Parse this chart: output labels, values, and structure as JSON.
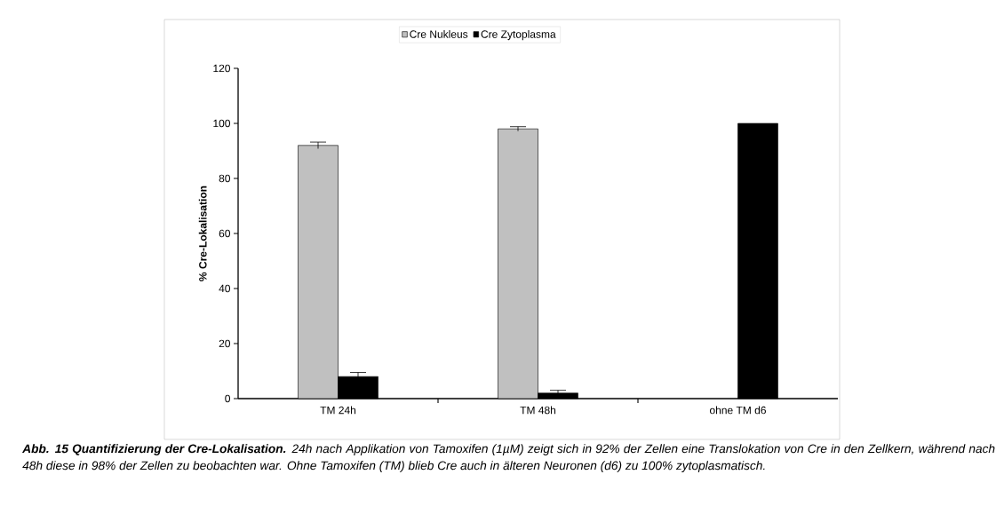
{
  "chart_data": {
    "type": "bar",
    "categories": [
      "TM 24h",
      "TM 48h",
      "ohne TM d6"
    ],
    "ylabel": "% Cre-Lokalisation",
    "series": [
      {
        "name": "Cre Nukleus",
        "color": "#c0c0c0",
        "values": [
          92,
          98,
          null
        ],
        "errors": [
          1.2,
          0.8,
          null
        ]
      },
      {
        "name": "Cre Zytoplasma",
        "color": "#000000",
        "values": [
          8,
          2,
          100
        ],
        "errors": [
          1.5,
          1.0,
          null
        ]
      }
    ],
    "ylim": [
      0,
      120
    ],
    "yticks": [
      0,
      20,
      40,
      60,
      80,
      100,
      120
    ],
    "grid": false,
    "legend": "top",
    "annotations": [
      "**Abb. 15 Quantifizierung der Cre-Lokalisation.** 24h nach Applikation von Tamoxifen (1µM) zeigt sich in 92% der Zellen eine Translokation von Cre in den Zellkern, während nach 48h diese in 98% der Zellen zu beobachten war. Ohne Tamoxifen (TM) blieb Cre auch in älteren Neuronen (d6) zu 100% zytoplasmatisch."
    ]
  }
}
